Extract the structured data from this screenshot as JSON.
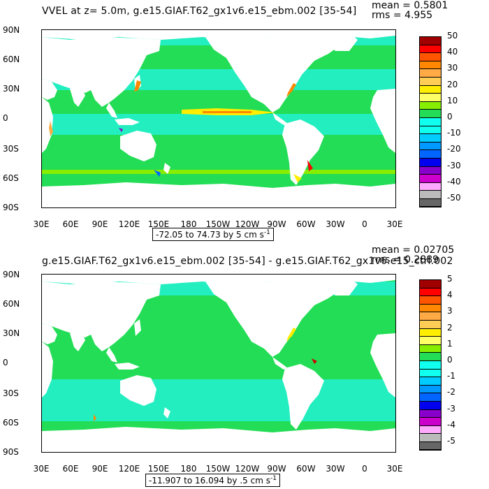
{
  "colors": {
    "land": "#ffffff",
    "ocean_zero": "#22dd55",
    "ocean_low": "#22eec0",
    "ocean_mid": "#11ffee",
    "eq_band": "#ffee00",
    "strong_pos": "#ff8800",
    "strong_neg": "#0066ff",
    "max": "#cc0000",
    "min": "#8800cc"
  },
  "colorbar_colors": [
    "#a00000",
    "#ff0000",
    "#ff5500",
    "#ff8800",
    "#ffaa44",
    "#ffcc55",
    "#ffee00",
    "#ffff66",
    "#88ee00",
    "#22dd55",
    "#11ffee",
    "#11ffee",
    "#00ccff",
    "#0099ff",
    "#0066ff",
    "#0000ee",
    "#8800cc",
    "#cc00cc",
    "#ffaaff",
    "#bbbbbb",
    "#666666"
  ],
  "chart_data": [
    {
      "type": "heatmap",
      "title": "VVEL at z=    5.0m, g.e15.GIAF.T62_gx1v6.e15_ebm.002 [35-54]",
      "stat_mean": "mean = 0.5801",
      "stat_rms": "rms = 4.955",
      "range_text": "-72.05 to 74.73 by 5 cm s",
      "range_exp": "-1",
      "x_ticks": [
        "30E",
        "60E",
        "90E",
        "120E",
        "150E",
        "180",
        "150W",
        "120W",
        "90W",
        "60W",
        "30W",
        "0",
        "30E"
      ],
      "y_ticks": [
        "90N",
        "60N",
        "30N",
        "0",
        "30S",
        "60S",
        "90S"
      ],
      "colorbar_labels": [
        "50",
        "40",
        "30",
        "20",
        "10",
        "0",
        "-10",
        "-20",
        "-30",
        "-40",
        "-50"
      ]
    },
    {
      "type": "heatmap",
      "title": "g.e15.GIAF.T62_gx1v6.e15_ebm.002 [35-54] - g.e15.GIAF.T62_gx1v6.e15_ctrl.002",
      "stat_mean": "mean = 0.02705",
      "stat_rms": "rms = 0.2889",
      "range_text": "-11.907 to 16.094 by .5 cm s",
      "range_exp": "-1",
      "x_ticks": [
        "30E",
        "60E",
        "90E",
        "120E",
        "150E",
        "180",
        "150W",
        "120W",
        "90W",
        "60W",
        "30W",
        "0",
        "30E"
      ],
      "y_ticks": [
        "90N",
        "60N",
        "30N",
        "0",
        "30S",
        "60S",
        "90S"
      ],
      "colorbar_labels": [
        "5",
        "4",
        "3",
        "2",
        "1",
        "0",
        "-1",
        "-2",
        "-3",
        "-4",
        "-5"
      ]
    }
  ]
}
